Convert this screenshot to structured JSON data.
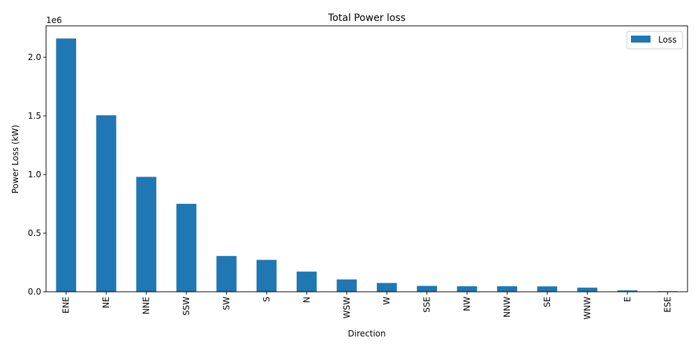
{
  "chart_data": {
    "type": "bar",
    "title": "Total Power loss",
    "xlabel": "Direction",
    "ylabel": "Power Loss (kW)",
    "y_offset_label": "1e6",
    "categories": [
      "ENE",
      "NE",
      "NNE",
      "SSW",
      "SW",
      "S",
      "N",
      "WSW",
      "W",
      "SSE",
      "NW",
      "NNW",
      "SE",
      "WNW",
      "E",
      "ESE"
    ],
    "series": [
      {
        "name": "Loss",
        "values": [
          2160000,
          1505000,
          980000,
          750000,
          305000,
          272000,
          172000,
          105000,
          75000,
          50000,
          47000,
          47000,
          46000,
          35000,
          12000,
          5000
        ]
      }
    ],
    "ylim": [
      0,
      2268000
    ],
    "yticks": [
      0,
      500000,
      1000000,
      1500000,
      2000000
    ],
    "ytick_labels": [
      "0.0",
      "0.5",
      "1.0",
      "1.5",
      "2.0"
    ],
    "legend_position": "top-right",
    "bar_color": "#1f77b4",
    "grid": false
  }
}
